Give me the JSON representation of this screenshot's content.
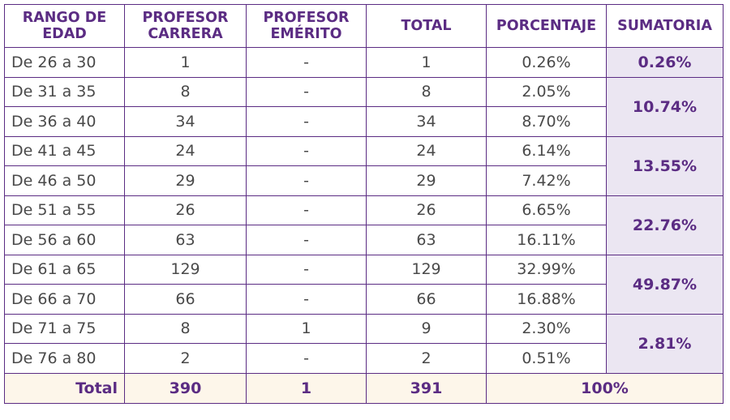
{
  "headers": [
    "RANGO DE EDAD",
    "PROFESOR CARRERA",
    "PROFESOR EMÉRITO",
    "TOTAL",
    "PORCENTAJE",
    "SUMATORIA"
  ],
  "rows": [
    {
      "range": "De 26 a 30",
      "carrera": "1",
      "emerito": "-",
      "total": "1",
      "pct": "0.26%"
    },
    {
      "range": "De 31 a 35",
      "carrera": "8",
      "emerito": "-",
      "total": "8",
      "pct": "2.05%"
    },
    {
      "range": "De 36 a 40",
      "carrera": "34",
      "emerito": "-",
      "total": "34",
      "pct": "8.70%"
    },
    {
      "range": "De 41 a 45",
      "carrera": "24",
      "emerito": "-",
      "total": "24",
      "pct": "6.14%"
    },
    {
      "range": "De 46 a 50",
      "carrera": "29",
      "emerito": "-",
      "total": "29",
      "pct": "7.42%"
    },
    {
      "range": "De 51 a 55",
      "carrera": "26",
      "emerito": "-",
      "total": "26",
      "pct": "6.65%"
    },
    {
      "range": "De 56 a 60",
      "carrera": "63",
      "emerito": "-",
      "total": "63",
      "pct": "16.11%"
    },
    {
      "range": "De 61 a 65",
      "carrera": "129",
      "emerito": "-",
      "total": "129",
      "pct": "32.99%"
    },
    {
      "range": "De 66 a 70",
      "carrera": "66",
      "emerito": "-",
      "total": "66",
      "pct": "16.88%"
    },
    {
      "range": "De 71 a 75",
      "carrera": "8",
      "emerito": "1",
      "total": "9",
      "pct": "2.30%"
    },
    {
      "range": "De 76 a 80",
      "carrera": "2",
      "emerito": "-",
      "total": "2",
      "pct": "0.51%"
    }
  ],
  "sumatoria": [
    "0.26%",
    "10.74%",
    "13.55%",
    "22.76%",
    "49.87%",
    "2.81%"
  ],
  "footer": {
    "label": "Total",
    "carrera": "390",
    "emerito": "1",
    "total": "391",
    "pct": "100%"
  }
}
